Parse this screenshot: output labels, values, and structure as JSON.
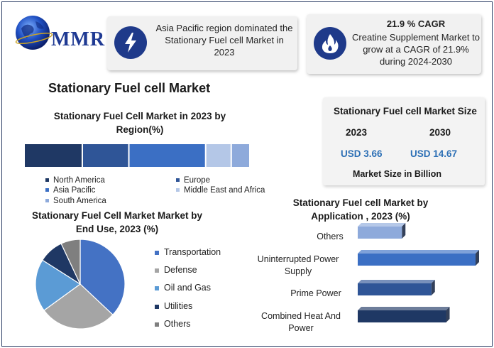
{
  "logo": {
    "text": "MMR",
    "icon": "globe-icon"
  },
  "cards": {
    "left": {
      "icon": "lightning-icon",
      "text": "Asia Pacific region dominated the Stationary Fuel cell Market in 2023"
    },
    "right": {
      "icon": "flame-icon",
      "title": "21.9 % CAGR",
      "text": "Creatine Supplement Market to grow at a CAGR of 21.9% during 2024-2030"
    }
  },
  "main_title": "Stationary Fuel cell Market",
  "market_size": {
    "title": "Stationary Fuel cell Market Size",
    "year_a": "2023",
    "year_b": "2030",
    "value_a": "USD 3.66",
    "value_b": "USD 14.67",
    "unit": "Market Size in Billion"
  },
  "chart_data": [
    {
      "type": "bar",
      "orientation": "stacked-horizontal",
      "title": "Stationary Fuel Cell Market in 2023 by Region(%)",
      "categories": [
        "North America",
        "Europe",
        "Asia Pacific",
        "Middle East and Africa",
        "South America"
      ],
      "values": [
        25,
        20,
        33,
        11,
        8
      ],
      "colors": [
        "#1f3864",
        "#2f5597",
        "#3b6fc4",
        "#b4c7e7",
        "#8eaadb"
      ],
      "legend": [
        "North America",
        "Europe",
        "Asia Pacific",
        "Middle East and Africa",
        "South America"
      ]
    },
    {
      "type": "pie",
      "title": "Stationary Fuel Cell Market  Market by End Use, 2023  (%)",
      "categories": [
        "Transportation",
        "Defense",
        "Oil and Gas",
        "Utilities",
        "Others"
      ],
      "values": [
        37,
        28,
        19,
        9,
        7
      ],
      "colors": [
        "#4472c4",
        "#a5a5a5",
        "#5b9bd5",
        "#1f3864",
        "#7f7f7f"
      ]
    },
    {
      "type": "bar",
      "orientation": "horizontal",
      "title": "Stationary Fuel cell  Market by Application , 2023  (%)",
      "categories": [
        "Others",
        "Uninterrupted Power Supply",
        "Prime Power",
        "Combined Heat And Power"
      ],
      "values": [
        9,
        24,
        15,
        18
      ],
      "colors": [
        "#8eaadb",
        "#3b6fc4",
        "#2f5597",
        "#1f3864"
      ]
    }
  ]
}
